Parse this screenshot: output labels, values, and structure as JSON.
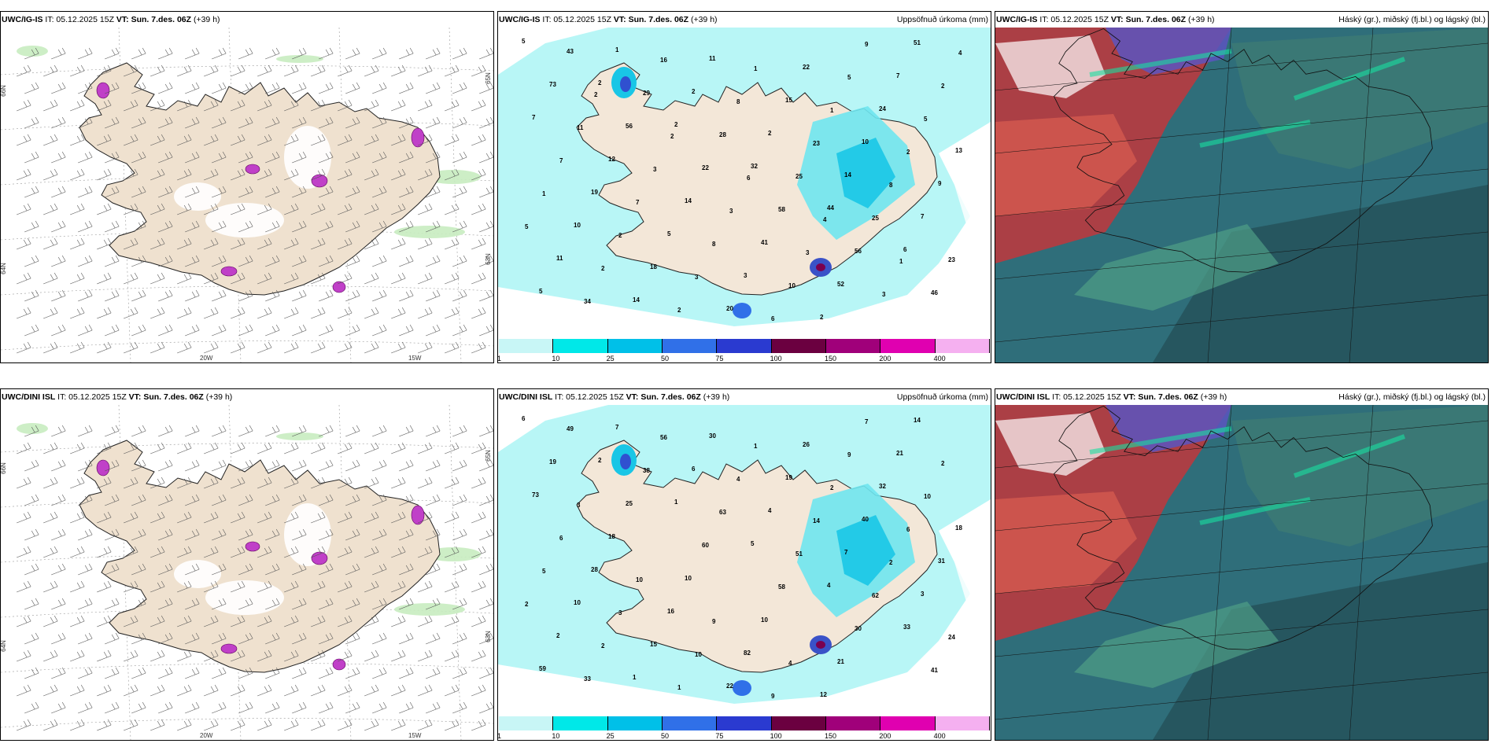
{
  "panels": [
    {
      "model": "UWC/IG-IS",
      "issue": "IT: 05.12.2025 15Z",
      "valid_label": "VT:",
      "valid": "Sun. 7.des. 06Z",
      "lead": "(+39 h)",
      "right_title": "",
      "kind": "wind",
      "lat_labels": [
        "66N",
        "65N",
        "64N",
        "63N"
      ],
      "lon_labels": [
        "20W",
        "15W"
      ],
      "numbers": []
    },
    {
      "model": "UWC/IG-IS",
      "issue": "IT: 05.12.2025 15Z",
      "valid_label": "VT:",
      "valid": "Sun. 7.des. 06Z",
      "lead": "(+39 h)",
      "right_title": "Uppsöfnuð úrkoma (mm)",
      "kind": "precip",
      "numbers": [
        "5",
        "2",
        "2",
        "32",
        "44",
        "6",
        "5",
        "1",
        "2",
        "2",
        "14",
        "7",
        "11",
        "14",
        "11",
        "15",
        "10",
        "9",
        "10",
        "18",
        "20",
        "22",
        "24",
        "13",
        "19",
        "5",
        "3",
        "2",
        "7",
        "7",
        "12",
        "14",
        "41",
        "52",
        "51",
        "73",
        "56",
        "22",
        "58",
        "56",
        "46",
        "43",
        "29",
        "28",
        "25",
        "25",
        "23",
        "34",
        "16",
        "8",
        "23",
        "8",
        "5",
        "2",
        "2",
        "1",
        "1",
        "2",
        "1",
        "2",
        "3",
        "6",
        "5",
        "5",
        "7",
        "7",
        "8",
        "10",
        "9",
        "2",
        "11",
        "3",
        "3",
        "3",
        "3",
        "4",
        "2",
        "2",
        "6",
        "4",
        "1"
      ],
      "colorbar": {
        "labels": [
          "1",
          "10",
          "25",
          "50",
          "75",
          "100",
          "150",
          "200",
          "400"
        ],
        "colors": [
          "#c8f6f6",
          "#00e8e8",
          "#00c0e8",
          "#3070e8",
          "#2a3ad0",
          "#6b0040",
          "#a0007a",
          "#e000b0",
          "#f5b0f0"
        ]
      }
    },
    {
      "model": "UWC/IG-IS",
      "issue": "IT: 05.12.2025 15Z",
      "valid_label": "VT:",
      "valid": "Sun. 7.des. 06Z",
      "lead": "(+39 h)",
      "right_title": "Háský (gr.), miðský (fj.bl.) og lágský (bl.)",
      "kind": "cloud"
    },
    {
      "model": "UWC/DINI ISL",
      "issue": "IT: 05.12.2025 15Z",
      "valid_label": "VT:",
      "valid": "Sun. 7.des. 06Z",
      "lead": "(+39 h)",
      "right_title": "",
      "kind": "wind",
      "lat_labels": [
        "66N",
        "65N",
        "64N",
        "63N"
      ],
      "lon_labels": [
        "20W",
        "15W"
      ],
      "numbers": []
    },
    {
      "model": "UWC/DINI ISL",
      "issue": "IT: 05.12.2025 15Z",
      "valid_label": "VT:",
      "valid": "Sun. 7.des. 06Z",
      "lead": "(+39 h)",
      "right_title": "Uppsöfnuð úrkoma (mm)",
      "kind": "precip",
      "numbers": [
        "6",
        "2",
        "1",
        "5",
        "4",
        "33",
        "59",
        "7",
        "6",
        "4",
        "7",
        "3",
        "2",
        "1",
        "30",
        "19",
        "40",
        "31",
        "10",
        "15",
        "22",
        "26",
        "32",
        "18",
        "28",
        "16",
        "82",
        "12",
        "21",
        "73",
        "18",
        "10",
        "10",
        "21",
        "14",
        "19",
        "25",
        "60",
        "58",
        "30",
        "41",
        "49",
        "38",
        "63",
        "51",
        "62",
        "24",
        "33",
        "56",
        "4",
        "14",
        "2",
        "2",
        "2",
        "1",
        "1",
        "2",
        "6",
        "5",
        "3",
        "10",
        "9",
        "9",
        "10",
        "6",
        "10",
        "9",
        "4",
        "7",
        "2",
        "3"
      ],
      "colorbar": {
        "labels": [
          "1",
          "10",
          "25",
          "50",
          "75",
          "100",
          "150",
          "200",
          "400"
        ],
        "colors": [
          "#c8f6f6",
          "#00e8e8",
          "#00c0e8",
          "#3070e8",
          "#2a3ad0",
          "#6b0040",
          "#a0007a",
          "#e000b0",
          "#f5b0f0"
        ]
      }
    },
    {
      "model": "UWC/DINI ISL",
      "issue": "IT: 05.12.2025 15Z",
      "valid_label": "VT:",
      "valid": "Sun. 7.des. 06Z",
      "lead": "(+39 h)",
      "right_title": "Háský (gr.), miðský (fj.bl.) og lágský (bl.)",
      "kind": "cloud"
    }
  ],
  "colors": {
    "land": "#efe1cf",
    "coast": "#222222",
    "precip_light": "#b8f6f6",
    "low_cloud": "#2f6e7a",
    "mid_cloud": "#b93a3f",
    "high_cloud": "#5a55c0"
  }
}
